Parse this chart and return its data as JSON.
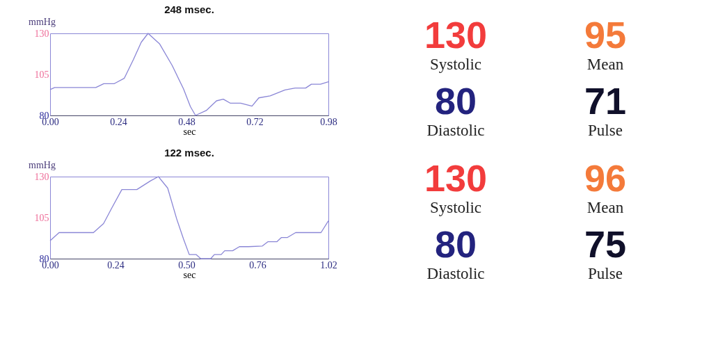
{
  "chart_data": [
    {
      "type": "line",
      "title": "248 msec.",
      "xlabel": "sec",
      "ylabel": "mmHg",
      "x": [
        0,
        0.016,
        0.161,
        0.189,
        0.225,
        0.261,
        0.293,
        0.321,
        0.345,
        0.386,
        0.43,
        0.47,
        0.494,
        0.512,
        0.55,
        0.586,
        0.61,
        0.634,
        0.671,
        0.711,
        0.735,
        0.775,
        0.827,
        0.863,
        0.9,
        0.92,
        0.952,
        0.98
      ],
      "series": [
        {
          "color": "#8a86d6",
          "values": [
            95.7,
            97,
            97,
            99.3,
            99.3,
            102.6,
            113.9,
            124.6,
            130,
            123.5,
            110.4,
            96.1,
            85.4,
            80,
            83,
            88.9,
            89.9,
            87.5,
            87.5,
            85.7,
            90.7,
            91.9,
            95.5,
            96.7,
            96.7,
            99,
            99,
            100.5
          ]
        }
      ],
      "xlim": [
        0,
        0.98
      ],
      "ylim": [
        80,
        130
      ],
      "xticks": [
        {
          "value": 0,
          "label": "0.00"
        },
        {
          "value": 0.24,
          "label": "0.24"
        },
        {
          "value": 0.48,
          "label": "0.48"
        },
        {
          "value": 0.72,
          "label": "0.72"
        },
        {
          "value": 0.98,
          "label": "0.98"
        }
      ],
      "yticks": [
        80,
        105,
        130
      ]
    },
    {
      "type": "other",
      "categories": [
        "Systolic",
        "Mean",
        "Diastolic",
        "Pulse"
      ],
      "values": [
        130,
        95,
        80,
        71
      ],
      "colors": [
        "#f23c3c",
        "#f47a3a",
        "#23237e",
        "#10102a"
      ],
      "data_labels": true
    },
    {
      "type": "line",
      "title": "122 msec.",
      "xlabel": "sec",
      "ylabel": "mmHg",
      "x": [
        0,
        0.033,
        0.159,
        0.196,
        0.226,
        0.263,
        0.318,
        0.368,
        0.397,
        0.431,
        0.464,
        0.489,
        0.51,
        0.535,
        0.552,
        0.589,
        0.602,
        0.627,
        0.64,
        0.669,
        0.694,
        0.727,
        0.778,
        0.798,
        0.831,
        0.848,
        0.87,
        0.9,
        0.993,
        1.02
      ],
      "series": [
        {
          "color": "#8a86d6",
          "values": [
            90.9,
            95.9,
            95.9,
            101.4,
            110.8,
            122.1,
            122.1,
            127.4,
            130,
            123,
            104.2,
            92,
            82.5,
            82.5,
            80,
            80,
            82.5,
            82.5,
            84.8,
            84.8,
            87.3,
            87.3,
            87.7,
            90.3,
            90.3,
            92.9,
            92.9,
            95.9,
            95.9,
            103
          ]
        }
      ],
      "xlim": [
        0,
        1.02
      ],
      "ylim": [
        80,
        130
      ],
      "xticks": [
        {
          "value": 0,
          "label": "0.00"
        },
        {
          "value": 0.24,
          "label": "0.24"
        },
        {
          "value": 0.5,
          "label": "0.50"
        },
        {
          "value": 0.76,
          "label": "0.76"
        },
        {
          "value": 1.02,
          "label": "1.02"
        }
      ],
      "yticks": [
        80,
        105,
        130
      ]
    },
    {
      "type": "other",
      "categories": [
        "Systolic",
        "Mean",
        "Diastolic",
        "Pulse"
      ],
      "values": [
        130,
        96,
        80,
        75
      ],
      "colors": [
        "#f23c3c",
        "#f47a3a",
        "#23237e",
        "#10102a"
      ],
      "data_labels": true
    }
  ]
}
